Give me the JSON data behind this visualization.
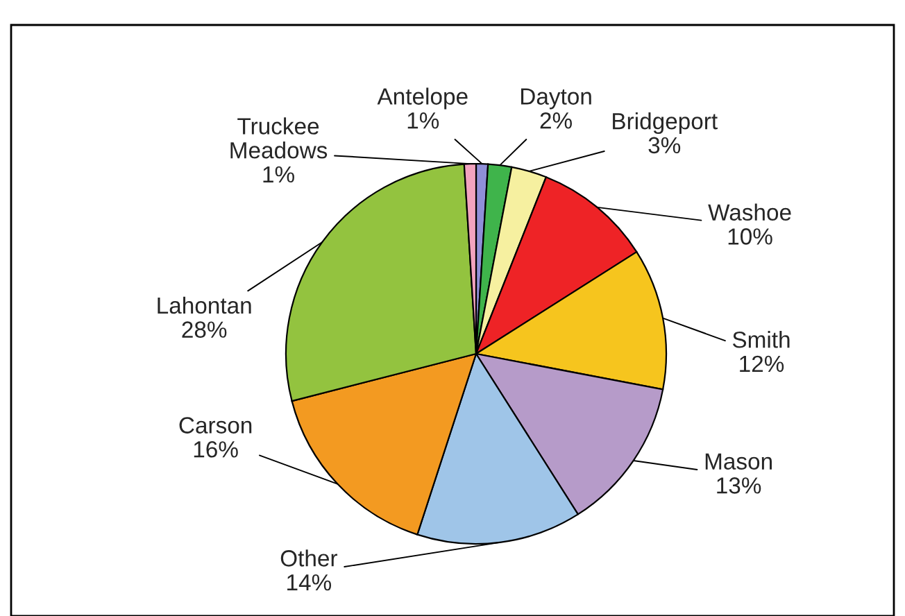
{
  "chart_data": {
    "type": "pie",
    "categories": [
      "Antelope",
      "Dayton",
      "Bridgeport",
      "Washoe",
      "Smith",
      "Mason",
      "Other",
      "Carson",
      "Lahontan",
      "Truckee\nMeadows"
    ],
    "values": [
      1,
      2,
      3,
      10,
      12,
      13,
      14,
      16,
      28,
      1
    ],
    "value_labels": [
      "1%",
      "2%",
      "3%",
      "10%",
      "12%",
      "13%",
      "14%",
      "16%",
      "28%",
      "1%"
    ],
    "colors": [
      "#8f8fd8",
      "#3fb44b",
      "#f6f0a0",
      "#ee2326",
      "#f6c51e",
      "#b69bc9",
      "#9fc5e8",
      "#f39a21",
      "#93c33f",
      "#f2a3bf"
    ],
    "legend": false
  }
}
